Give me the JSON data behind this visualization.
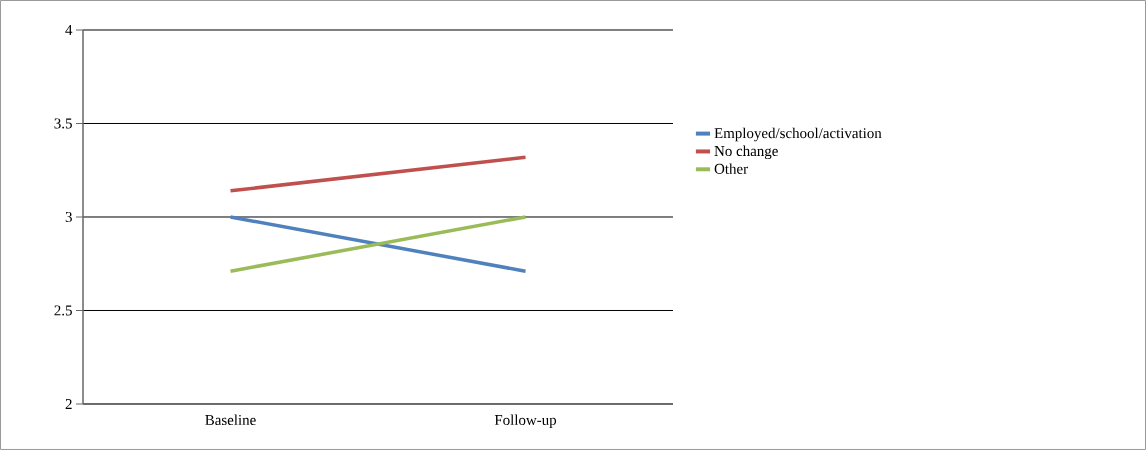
{
  "chart_data": {
    "type": "line",
    "categories": [
      "Baseline",
      "Follow-up"
    ],
    "series": [
      {
        "name": "Employed/school/activation",
        "color": "#4f81bd",
        "values": [
          3.0,
          2.71
        ]
      },
      {
        "name": "No change",
        "color": "#c0504d",
        "values": [
          3.14,
          3.32
        ]
      },
      {
        "name": "Other",
        "color": "#9bbb59",
        "values": [
          2.71,
          3.0
        ]
      }
    ],
    "ylim": [
      2,
      4
    ],
    "yticks": [
      2,
      2.5,
      3,
      3.5,
      4
    ],
    "grid": "y",
    "legend": "right",
    "marker": "none",
    "line_style": "solid"
  }
}
